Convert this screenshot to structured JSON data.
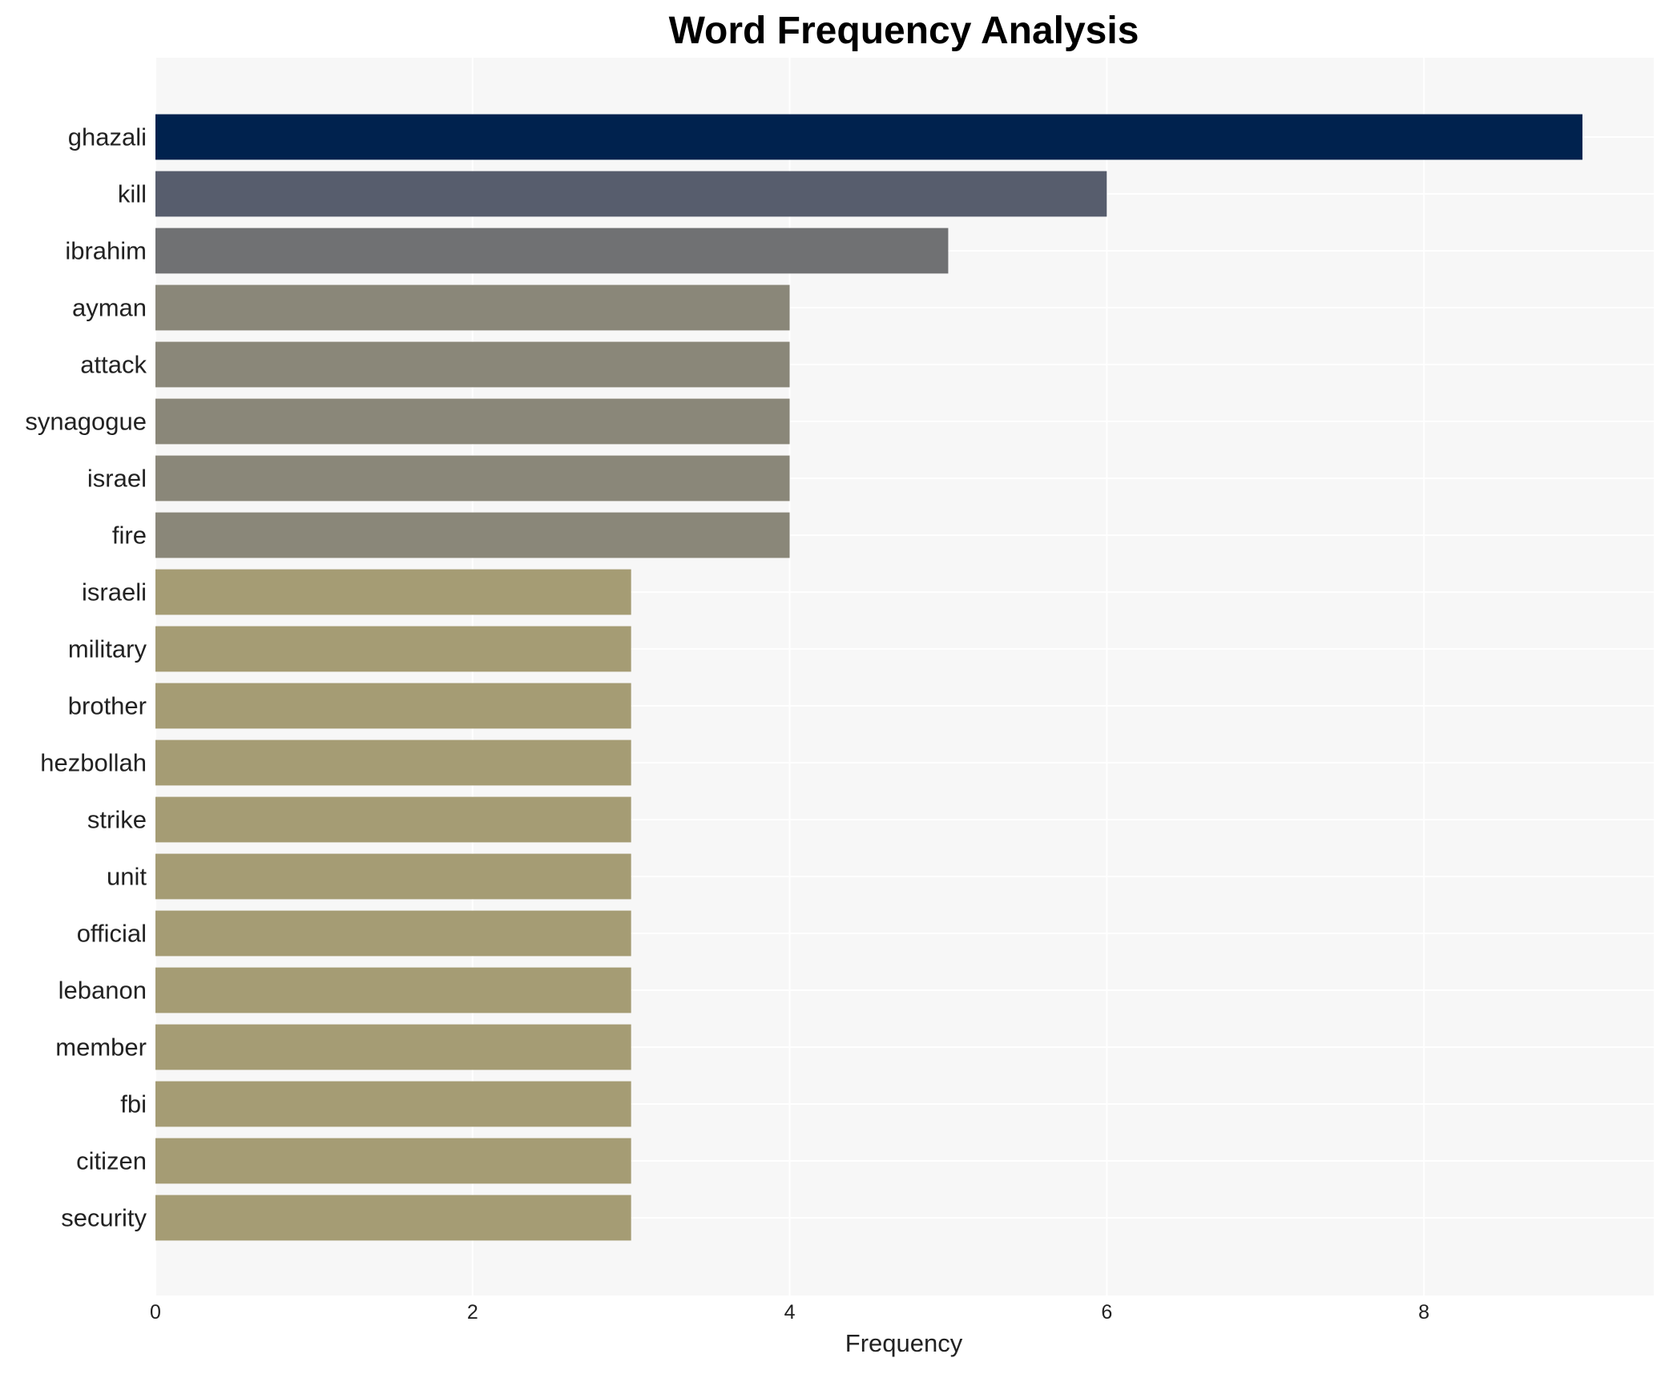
{
  "chart_data": {
    "type": "bar",
    "orientation": "horizontal",
    "title": "Word Frequency Analysis",
    "xlabel": "Frequency",
    "ylabel": "",
    "xlim": [
      0,
      9.45
    ],
    "xticks": [
      0,
      2,
      4,
      6,
      8
    ],
    "grid": true,
    "categories": [
      "ghazali",
      "kill",
      "ibrahim",
      "ayman",
      "attack",
      "synagogue",
      "israel",
      "fire",
      "israeli",
      "military",
      "brother",
      "hezbollah",
      "strike",
      "unit",
      "official",
      "lebanon",
      "member",
      "fbi",
      "citizen",
      "security"
    ],
    "values": [
      9,
      6,
      5,
      4,
      4,
      4,
      4,
      4,
      3,
      3,
      3,
      3,
      3,
      3,
      3,
      3,
      3,
      3,
      3,
      3
    ],
    "colors": [
      "#00224e",
      "#575d6d",
      "#707173",
      "#8a8779",
      "#8a8779",
      "#8a8779",
      "#8a8779",
      "#8a8779",
      "#a59c74",
      "#a59c74",
      "#a59c74",
      "#a59c74",
      "#a59c74",
      "#a59c74",
      "#a59c74",
      "#a59c74",
      "#a59c74",
      "#a59c74",
      "#a59c74",
      "#a59c74"
    ],
    "plot_background": "#f7f7f7",
    "grid_color": "#ffffff"
  }
}
